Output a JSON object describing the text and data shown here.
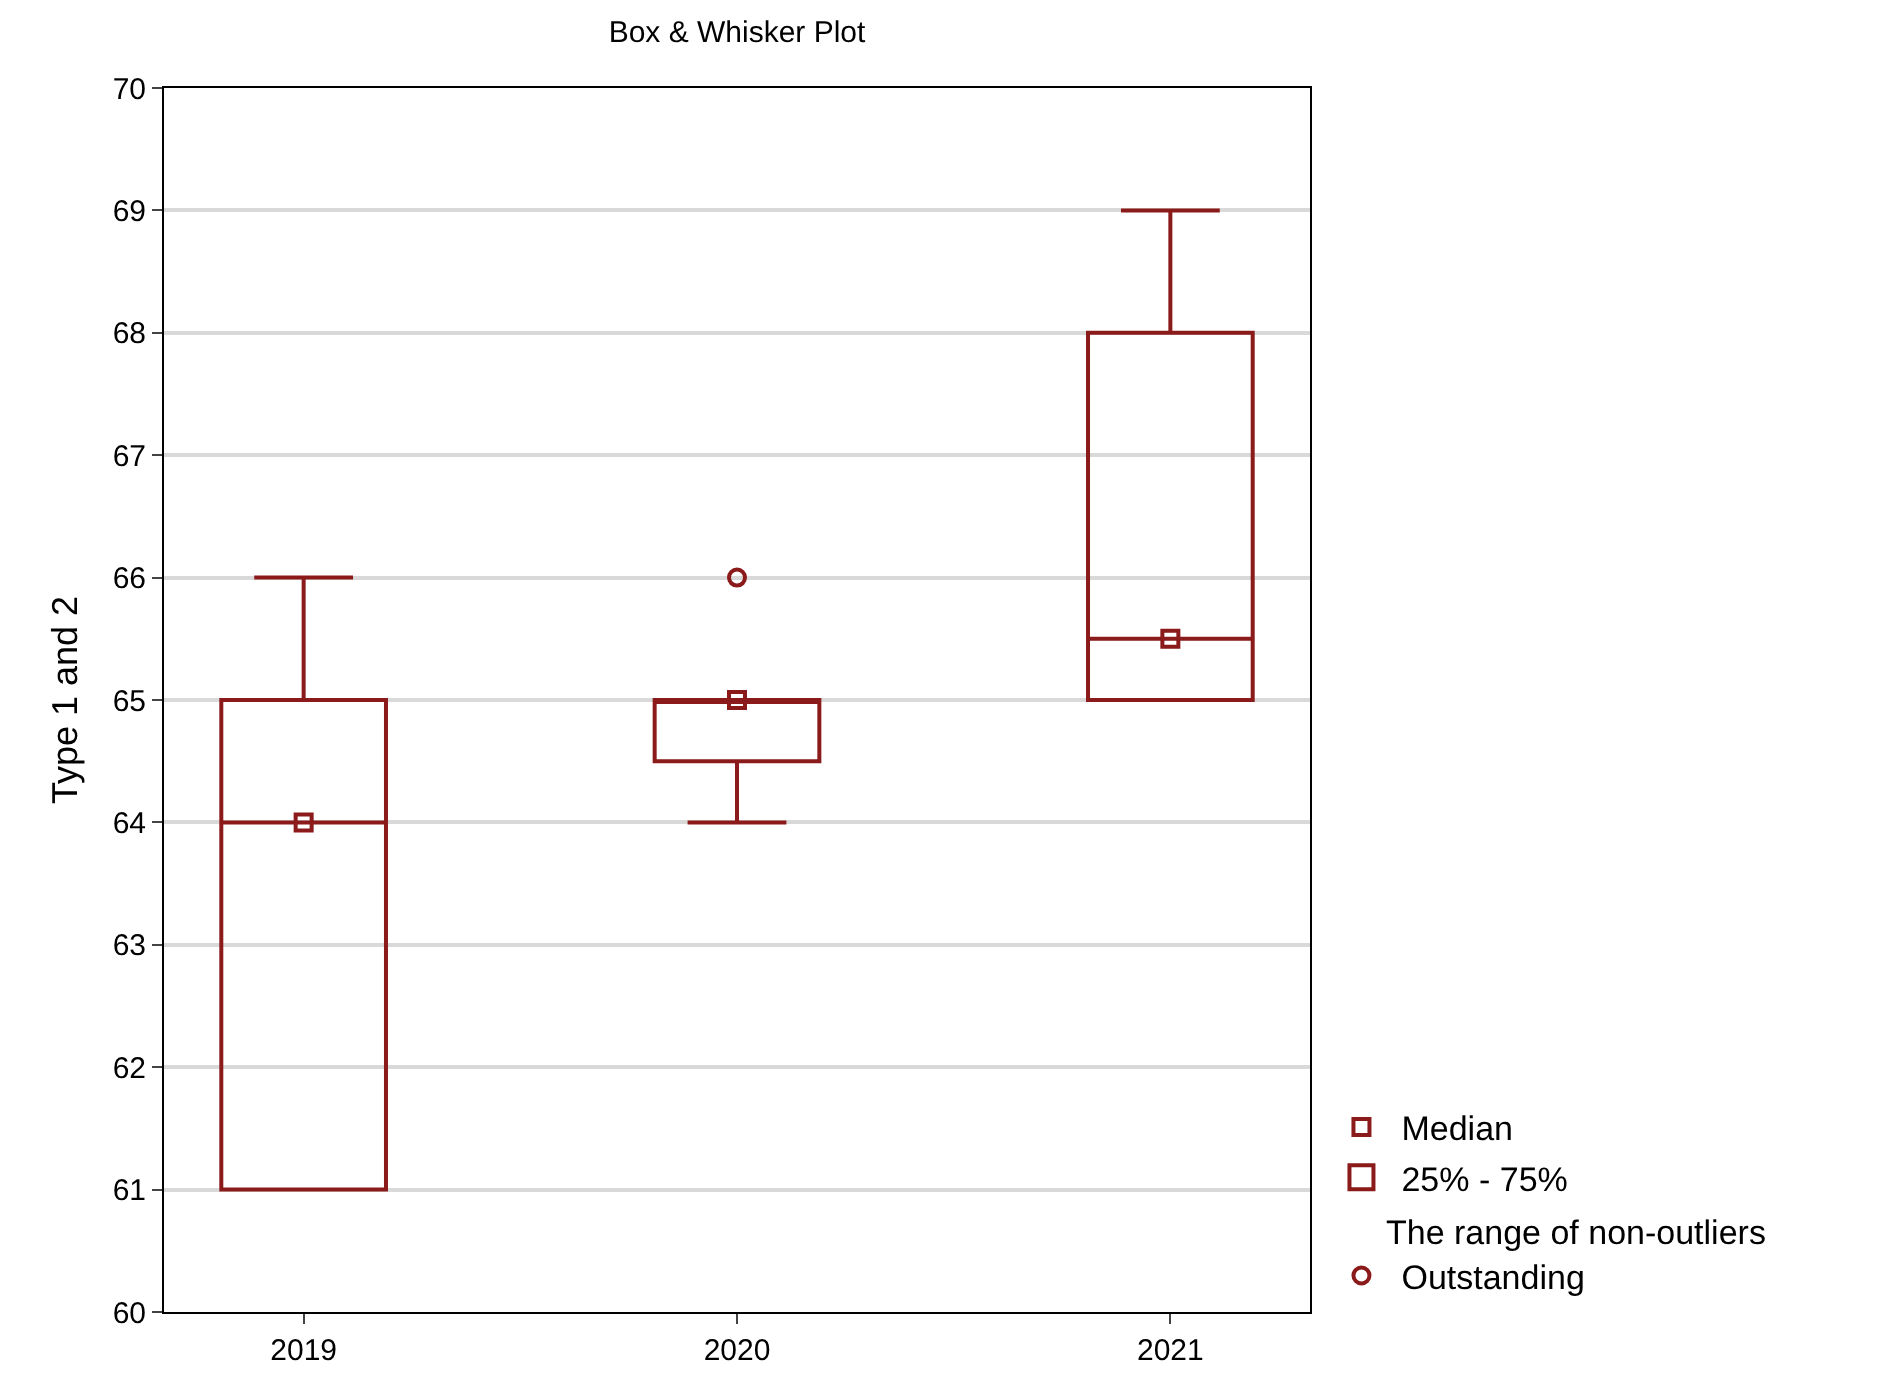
{
  "chart_data": {
    "type": "box",
    "title": "Box & Whisker Plot",
    "ylabel": "Type 1 and 2",
    "categories": [
      "2019",
      "2020",
      "2021"
    ],
    "series": [
      {
        "name": "Median",
        "type": "scatter",
        "marker": "square",
        "color": "#8b1a1a",
        "values": [
          64,
          65,
          65.5
        ]
      },
      {
        "name": "25% - 75%",
        "color": "#8b1a1a",
        "boxes": [
          {
            "low": 61,
            "q1": 61,
            "median": 64,
            "q3": 65,
            "high": 66
          },
          {
            "low": 64,
            "q1": 64.5,
            "median": 65,
            "q3": 65,
            "high": 65
          },
          {
            "low": 65,
            "q1": 65,
            "median": 65.5,
            "q3": 68,
            "high": 69
          }
        ]
      },
      {
        "name": "Outstanding",
        "type": "scatter",
        "marker": "circle",
        "color": "#8b1a1a",
        "values": [
          null,
          66,
          null
        ]
      }
    ],
    "annotations": [
      "The range of non-outliers"
    ],
    "ylim": [
      60,
      70
    ],
    "yticks": [
      60,
      61,
      62,
      63,
      64,
      65,
      66,
      67,
      68,
      69,
      70
    ],
    "grid": "y",
    "legend": "bottom right"
  }
}
